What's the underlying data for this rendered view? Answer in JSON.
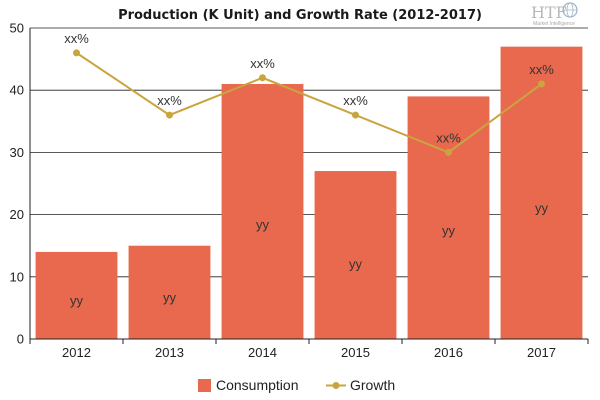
{
  "chart_data": {
    "type": "bar",
    "title": "Production (K Unit) and Growth Rate (2012-2017)",
    "categories": [
      "2012",
      "2013",
      "2014",
      "2015",
      "2016",
      "2017"
    ],
    "ylim": [
      0,
      50
    ],
    "yticks": [
      "0",
      "10",
      "20",
      "30",
      "40",
      "50"
    ],
    "grid": true,
    "legend_position": "bottom",
    "series": [
      {
        "name": "Consumption",
        "kind": "bar",
        "color": "#e8694e",
        "values": [
          14,
          15,
          41,
          27,
          39,
          47
        ],
        "labels": [
          "yy",
          "yy",
          "yy",
          "yy",
          "yy",
          "yy"
        ]
      },
      {
        "name": "Growth",
        "kind": "line",
        "color": "#c9a43f",
        "values": [
          46,
          36,
          42,
          36,
          30,
          41
        ],
        "labels": [
          "xx%",
          "xx%",
          "xx%",
          "xx%",
          "xx%",
          "xx%"
        ]
      }
    ]
  },
  "watermark": {
    "brand": "HTF",
    "tagline": "Market Intelligence",
    "icon": "globe-icon"
  }
}
